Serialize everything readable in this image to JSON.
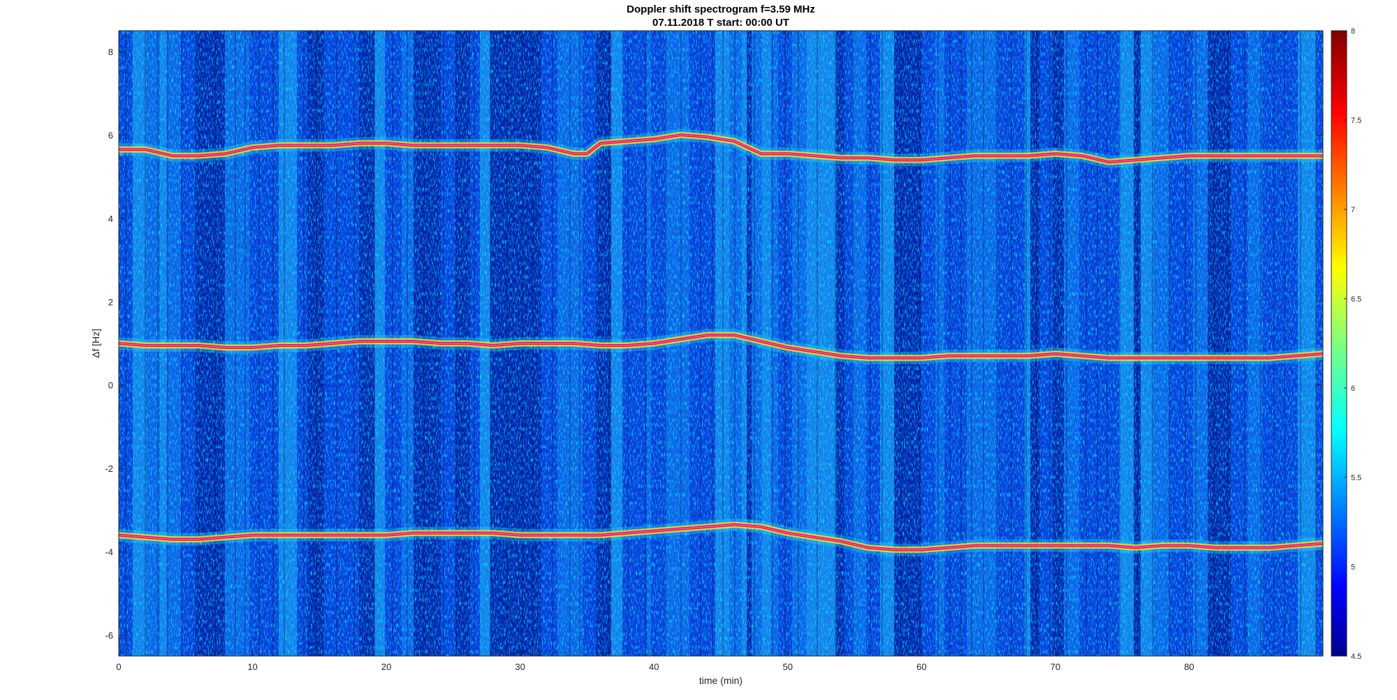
{
  "chart_data": {
    "type": "heatmap",
    "title": "Doppler shift spectrogram f=3.59 MHz",
    "subtitle": "07.11.2018   T start: 00:00 UT",
    "xlabel": "time (min)",
    "ylabel": "Δf [Hz]",
    "xlim": [
      0,
      90
    ],
    "ylim": [
      -6.5,
      8.5
    ],
    "x_ticks": [
      0,
      10,
      20,
      30,
      40,
      50,
      60,
      70,
      80
    ],
    "x_tick_labels": [
      "0",
      "10",
      "20",
      "30",
      "40",
      "50",
      "60",
      "70",
      "80"
    ],
    "y_ticks": [
      8,
      6,
      4,
      2,
      0,
      -2,
      -4,
      -6
    ],
    "y_tick_labels": [
      "8",
      "6",
      "4",
      "2",
      "0",
      "-2",
      "-4",
      "-6"
    ],
    "colormap": "jet",
    "colorbar": {
      "range": [
        4.5,
        8
      ],
      "ticks": [
        8,
        7.5,
        7,
        6.5,
        6,
        5.5,
        5,
        4.5
      ],
      "tick_labels": [
        "8",
        "7.5",
        "7",
        "6.5",
        "6",
        "5.5",
        "5",
        "4.5"
      ]
    },
    "traces": [
      {
        "band": "upper",
        "time": [
          0,
          2,
          4,
          6,
          8,
          10,
          12,
          14,
          16,
          18,
          20,
          22,
          24,
          26,
          28,
          30,
          32,
          34,
          35,
          36,
          38,
          40,
          42,
          44,
          46,
          47,
          48,
          50,
          52,
          54,
          56,
          58,
          60,
          62,
          64,
          66,
          68,
          70,
          72,
          74,
          76,
          78,
          80,
          82,
          84,
          86,
          88,
          90
        ],
        "freq": [
          5.65,
          5.65,
          5.5,
          5.5,
          5.55,
          5.7,
          5.75,
          5.75,
          5.75,
          5.8,
          5.8,
          5.75,
          5.75,
          5.75,
          5.75,
          5.75,
          5.7,
          5.55,
          5.55,
          5.8,
          5.85,
          5.9,
          6.0,
          5.95,
          5.85,
          5.7,
          5.55,
          5.55,
          5.5,
          5.45,
          5.45,
          5.4,
          5.4,
          5.45,
          5.5,
          5.5,
          5.5,
          5.55,
          5.5,
          5.35,
          5.4,
          5.45,
          5.5,
          5.5,
          5.5,
          5.5,
          5.5,
          5.5
        ]
      },
      {
        "band": "middle",
        "time": [
          0,
          2,
          4,
          6,
          8,
          10,
          12,
          14,
          16,
          18,
          20,
          22,
          24,
          26,
          28,
          30,
          32,
          34,
          36,
          38,
          40,
          42,
          44,
          46,
          48,
          50,
          52,
          54,
          56,
          58,
          60,
          62,
          64,
          66,
          68,
          70,
          72,
          74,
          76,
          78,
          80,
          82,
          84,
          86,
          88,
          90
        ],
        "freq": [
          1.0,
          0.95,
          0.95,
          0.95,
          0.9,
          0.9,
          0.95,
          0.95,
          1.0,
          1.05,
          1.05,
          1.05,
          1.0,
          1.0,
          0.95,
          1.0,
          1.0,
          1.0,
          0.95,
          0.95,
          1.0,
          1.1,
          1.2,
          1.2,
          1.05,
          0.9,
          0.8,
          0.7,
          0.65,
          0.65,
          0.65,
          0.7,
          0.7,
          0.7,
          0.7,
          0.75,
          0.7,
          0.65,
          0.65,
          0.65,
          0.65,
          0.65,
          0.65,
          0.65,
          0.7,
          0.75
        ]
      },
      {
        "band": "lower",
        "time": [
          0,
          2,
          4,
          6,
          8,
          10,
          12,
          14,
          16,
          18,
          20,
          22,
          24,
          26,
          28,
          30,
          32,
          34,
          36,
          38,
          40,
          42,
          44,
          46,
          48,
          50,
          52,
          54,
          56,
          58,
          60,
          62,
          64,
          66,
          68,
          70,
          72,
          74,
          76,
          78,
          80,
          82,
          84,
          86,
          88,
          90
        ],
        "freq": [
          -3.6,
          -3.65,
          -3.7,
          -3.7,
          -3.65,
          -3.6,
          -3.6,
          -3.6,
          -3.6,
          -3.6,
          -3.6,
          -3.55,
          -3.55,
          -3.55,
          -3.55,
          -3.6,
          -3.6,
          -3.6,
          -3.6,
          -3.55,
          -3.5,
          -3.45,
          -3.4,
          -3.35,
          -3.4,
          -3.55,
          -3.65,
          -3.75,
          -3.9,
          -3.95,
          -3.95,
          -3.9,
          -3.85,
          -3.85,
          -3.85,
          -3.85,
          -3.85,
          -3.85,
          -3.9,
          -3.85,
          -3.85,
          -3.9,
          -3.9,
          -3.9,
          -3.85,
          -3.8
        ]
      }
    ]
  }
}
